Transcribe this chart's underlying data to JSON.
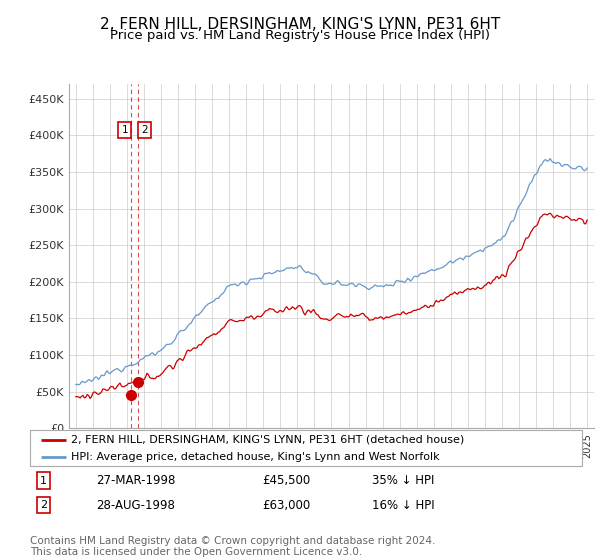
{
  "title": "2, FERN HILL, DERSINGHAM, KING'S LYNN, PE31 6HT",
  "subtitle": "Price paid vs. HM Land Registry's House Price Index (HPI)",
  "title_fontsize": 11,
  "subtitle_fontsize": 9.5,
  "ylabel_ticks": [
    "£0",
    "£50K",
    "£100K",
    "£150K",
    "£200K",
    "£250K",
    "£300K",
    "£350K",
    "£400K",
    "£450K"
  ],
  "ytick_values": [
    0,
    50000,
    100000,
    150000,
    200000,
    250000,
    300000,
    350000,
    400000,
    450000
  ],
  "ylim": [
    0,
    470000
  ],
  "red_line_color": "#cc0000",
  "blue_line_color": "#6699cc",
  "grid_color": "#cccccc",
  "legend_label_red": "2, FERN HILL, DERSINGHAM, KING'S LYNN, PE31 6HT (detached house)",
  "legend_label_blue": "HPI: Average price, detached house, King's Lynn and West Norfolk",
  "transaction1_date": "27-MAR-1998",
  "transaction1_price": "£45,500",
  "transaction1_hpi": "35% ↓ HPI",
  "transaction1_year": 1998.22,
  "transaction1_value": 45500,
  "transaction2_date": "28-AUG-1998",
  "transaction2_price": "£63,000",
  "transaction2_hpi": "16% ↓ HPI",
  "transaction2_year": 1998.66,
  "transaction2_value": 63000,
  "label_box_color": "#cc0000",
  "dashed_line_color": "#cc0000",
  "footer_text": "Contains HM Land Registry data © Crown copyright and database right 2024.\nThis data is licensed under the Open Government Licence v3.0.",
  "footer_fontsize": 7.5,
  "background_color": "#ffffff"
}
